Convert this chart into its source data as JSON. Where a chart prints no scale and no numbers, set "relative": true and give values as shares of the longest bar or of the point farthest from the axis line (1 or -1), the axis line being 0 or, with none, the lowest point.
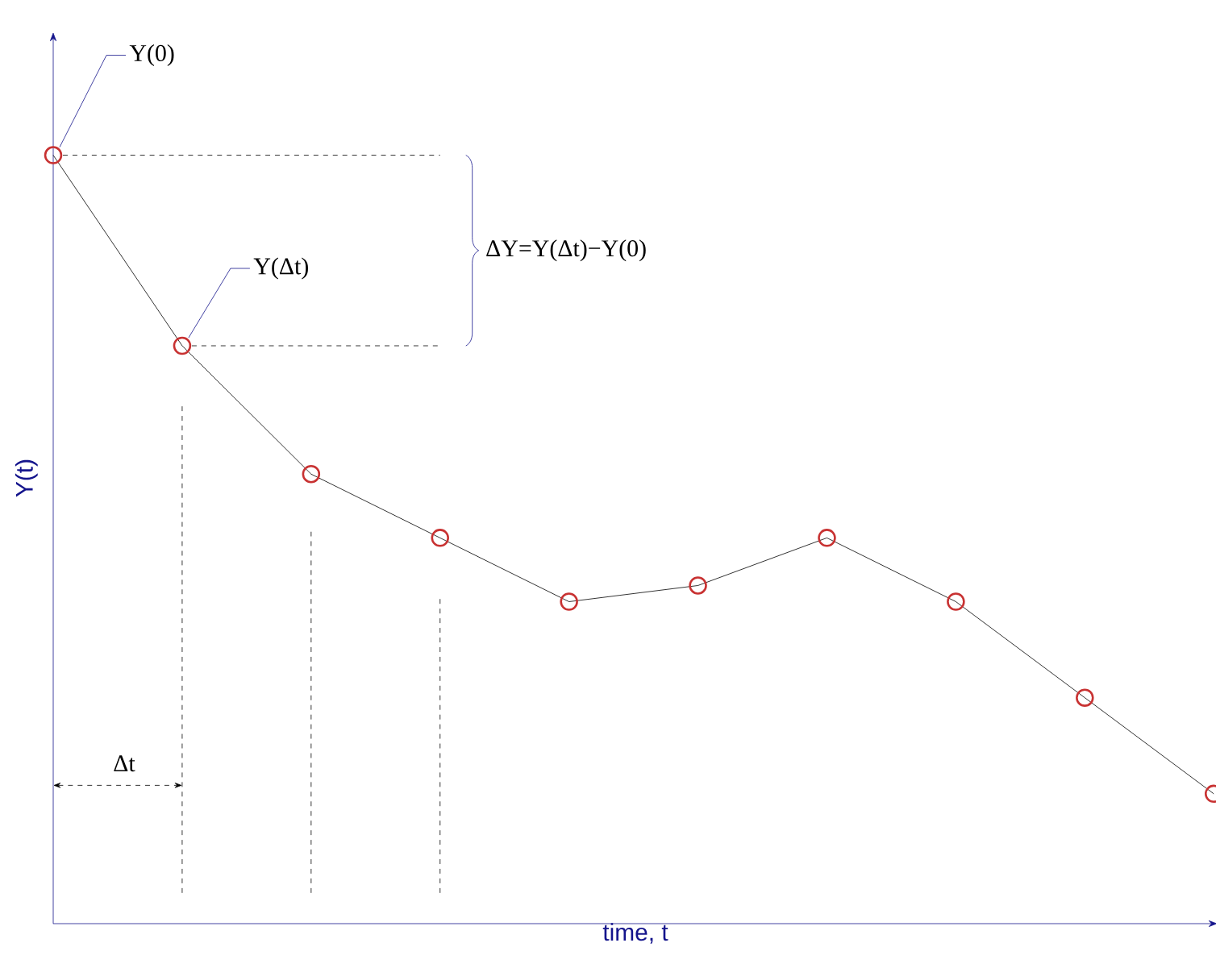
{
  "chart_data": {
    "type": "line",
    "relative": true,
    "xlabel": "time, t",
    "ylabel": "Y(t)",
    "marker": "circle",
    "line_style": "solid",
    "categories": [
      null,
      null,
      null,
      null,
      null,
      null,
      null,
      null,
      null,
      null
    ],
    "series": [
      {
        "color": "#000000",
        "values": [
          1,
          0.752,
          0.585,
          0.502,
          0.419,
          0.44,
          0.502,
          0.419,
          0.294,
          0.169
        ]
      }
    ],
    "annotations": [
      "Y(0)",
      "Y(Δt)",
      "ΔY=Y(Δt)−Y(0)",
      "Δt"
    ]
  }
}
